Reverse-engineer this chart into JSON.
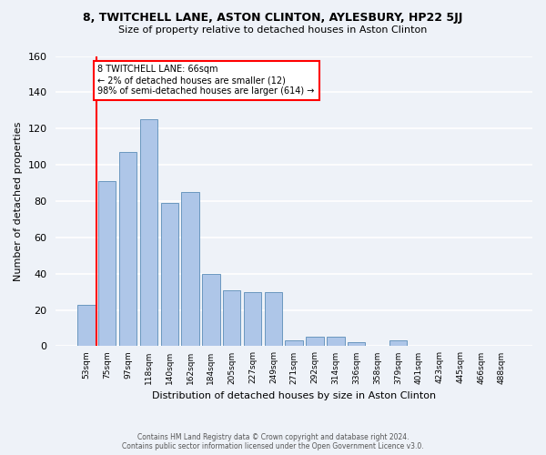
{
  "title": "8, TWITCHELL LANE, ASTON CLINTON, AYLESBURY, HP22 5JJ",
  "subtitle": "Size of property relative to detached houses in Aston Clinton",
  "xlabel": "Distribution of detached houses by size in Aston Clinton",
  "ylabel": "Number of detached properties",
  "categories": [
    "53sqm",
    "75sqm",
    "97sqm",
    "118sqm",
    "140sqm",
    "162sqm",
    "184sqm",
    "205sqm",
    "227sqm",
    "249sqm",
    "271sqm",
    "292sqm",
    "314sqm",
    "336sqm",
    "358sqm",
    "379sqm",
    "401sqm",
    "423sqm",
    "445sqm",
    "466sqm",
    "488sqm"
  ],
  "values": [
    23,
    91,
    107,
    125,
    79,
    85,
    40,
    31,
    30,
    30,
    3,
    5,
    5,
    2,
    0,
    3,
    0,
    0,
    0,
    0,
    0
  ],
  "bar_color": "#aec6e8",
  "bar_edge_color": "#5b8db8",
  "annotation_line1": "8 TWITCHELL LANE: 66sqm",
  "annotation_line2": "← 2% of detached houses are smaller (12)",
  "annotation_line3": "98% of semi-detached houses are larger (614) →",
  "annotation_box_color": "white",
  "annotation_box_edge_color": "red",
  "vline_color": "red",
  "ylim": [
    0,
    160
  ],
  "yticks": [
    0,
    20,
    40,
    60,
    80,
    100,
    120,
    140,
    160
  ],
  "background_color": "#eef2f8",
  "grid_color": "white",
  "footer1": "Contains HM Land Registry data © Crown copyright and database right 2024.",
  "footer2": "Contains public sector information licensed under the Open Government Licence v3.0."
}
